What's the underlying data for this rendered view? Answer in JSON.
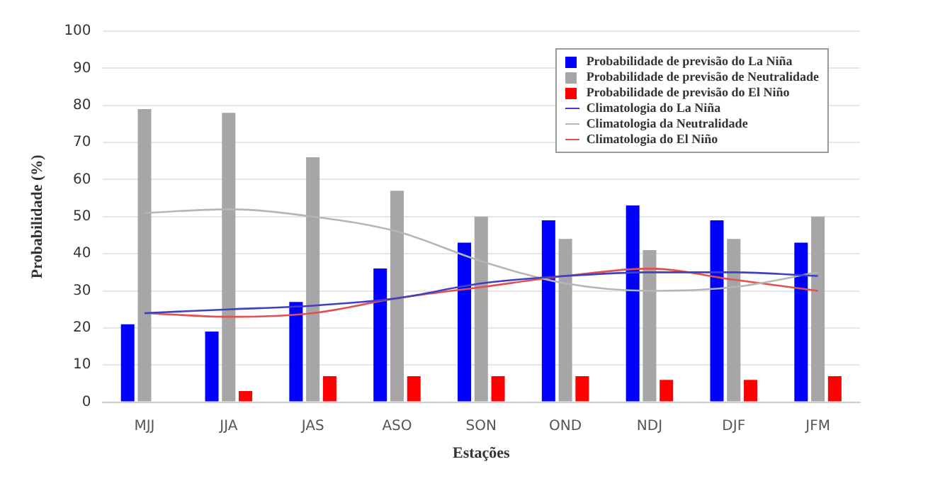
{
  "chart_data": {
    "type": "bar",
    "xlabel": "Estações",
    "ylabel": "Probabilidade (%)",
    "categories": [
      "MJJ",
      "JJA",
      "JAS",
      "ASO",
      "SON",
      "OND",
      "NDJ",
      "DJF",
      "JFM"
    ],
    "series": [
      {
        "name": "Probabilidade de previsão do La Niña",
        "color": "#0000ff",
        "values": [
          21,
          19,
          27,
          36,
          43,
          49,
          53,
          49,
          43
        ]
      },
      {
        "name": "Probabilidade de previsão de Neutralidade",
        "color": "#a6a6a6",
        "values": [
          79,
          78,
          66,
          57,
          50,
          44,
          41,
          44,
          50
        ]
      },
      {
        "name": "Probabilidade de previsão do El Niño",
        "color": "#ff0000",
        "values": [
          0,
          3,
          7,
          7,
          7,
          7,
          6,
          6,
          7
        ]
      },
      {
        "name": "Climatologia do La Niña",
        "type": "line",
        "color": "#4040c0",
        "values": [
          24,
          25,
          26,
          28,
          32,
          34,
          35,
          35,
          34
        ]
      },
      {
        "name": "Climatologia da Neutralidade",
        "type": "line",
        "color": "#b0b8b8",
        "values": [
          51,
          52,
          50,
          46,
          38,
          32,
          30,
          31,
          35
        ]
      },
      {
        "name": "Climatologia do El Niño",
        "type": "line",
        "color": "#e05050",
        "values": [
          24,
          23,
          24,
          28,
          31,
          34,
          36,
          33,
          30
        ]
      }
    ],
    "ylim": [
      0,
      100
    ],
    "yticks": [
      0,
      10,
      20,
      30,
      40,
      50,
      60,
      70,
      80,
      90,
      100
    ],
    "grid": "y",
    "legend": "top right",
    "marker": "none",
    "line_style": "solid"
  }
}
